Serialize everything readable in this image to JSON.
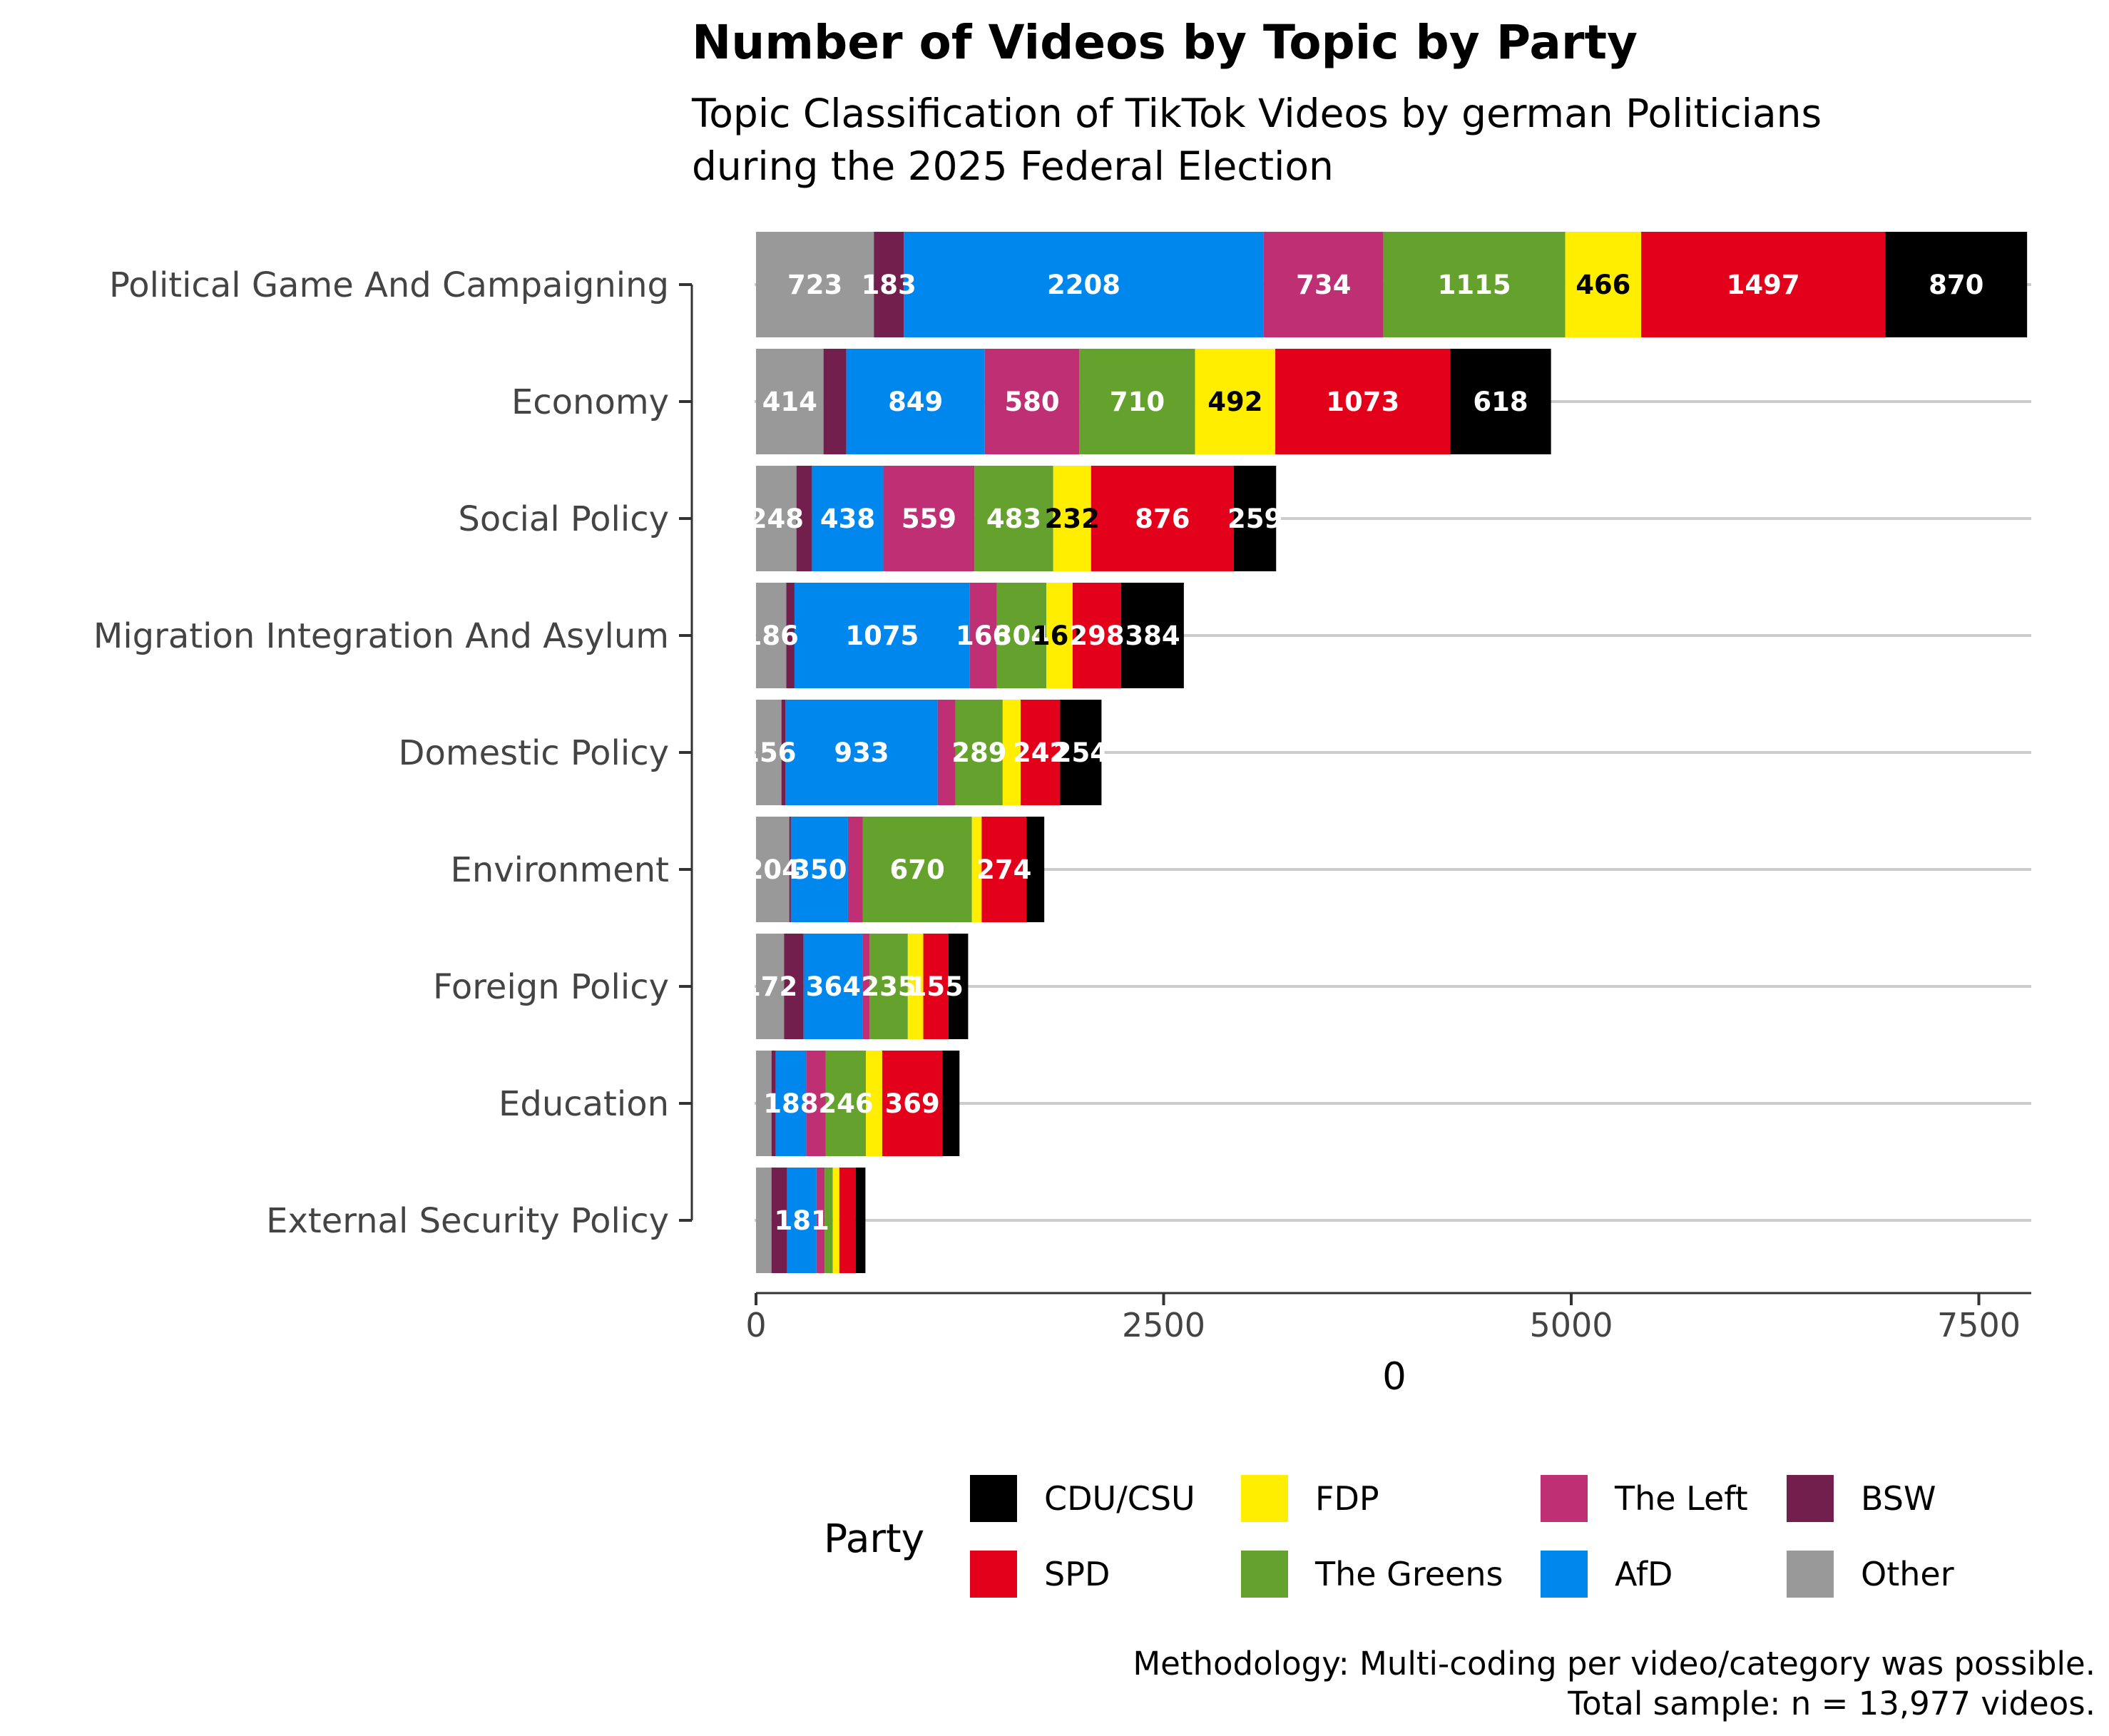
{
  "chart_data": {
    "type": "bar",
    "orientation": "horizontal",
    "stacked": true,
    "title": "Number of Videos by Topic by Party",
    "subtitle_lines": [
      "Topic Classification of TikTok Videos by german Politicians",
      "during the 2025 Federal Election"
    ],
    "xlabel": "0",
    "xlim": [
      0,
      7800
    ],
    "x_ticks": [
      0,
      2500,
      5000,
      7500
    ],
    "grid": "horizontal lines at categories",
    "categories": [
      "Political Game And Campaigning",
      "Economy",
      "Social Policy",
      "Migration Integration And Asylum",
      "Domestic Policy",
      "Environment",
      "Foreign Policy",
      "Education",
      "External Security Policy"
    ],
    "series": [
      {
        "name": "Other",
        "color": "#999999",
        "text_color": "#ffffff",
        "values": [
          723,
          414,
          248,
          186,
          156,
          204,
          172,
          95,
          95
        ]
      },
      {
        "name": "BSW",
        "color": "#731f4e",
        "text_color": "#ffffff",
        "values": [
          183,
          140,
          95,
          50,
          25,
          10,
          120,
          25,
          95
        ]
      },
      {
        "name": "AfD",
        "color": "#0087ed",
        "text_color": "#ffffff",
        "values": [
          2208,
          849,
          438,
          1075,
          933,
          350,
          364,
          188,
          181
        ]
      },
      {
        "name": "The Left",
        "color": "#be2f73",
        "text_color": "#ffffff",
        "values": [
          734,
          580,
          559,
          166,
          110,
          90,
          40,
          120,
          50
        ]
      },
      {
        "name": "The Greens",
        "color": "#64a12d",
        "text_color": "#ffffff",
        "values": [
          1115,
          710,
          483,
          304,
          289,
          670,
          235,
          246,
          50
        ]
      },
      {
        "name": "FDP",
        "color": "#ffee00",
        "text_color": "#000000",
        "values": [
          466,
          492,
          232,
          161,
          110,
          60,
          95,
          100,
          40
        ]
      },
      {
        "name": "SPD",
        "color": "#e3001b",
        "text_color": "#ffffff",
        "values": [
          1497,
          1073,
          876,
          298,
          242,
          274,
          155,
          369,
          100
        ]
      },
      {
        "name": "CDU/CSU",
        "color": "#000000",
        "text_color": "#ffffff",
        "values": [
          870,
          618,
          259,
          384,
          254,
          110,
          120,
          105,
          60
        ]
      }
    ],
    "label_threshold": 150,
    "legend": {
      "title": "Party",
      "placement": "bottom",
      "order": [
        "CDU/CSU",
        "SPD",
        "FDP",
        "The Greens",
        "The Left",
        "AfD",
        "BSW",
        "Other"
      ]
    },
    "caption_lines": [
      "Methodology: Multi-coding per video/category was possible.",
      "Total sample: n = 13,977 videos."
    ]
  }
}
